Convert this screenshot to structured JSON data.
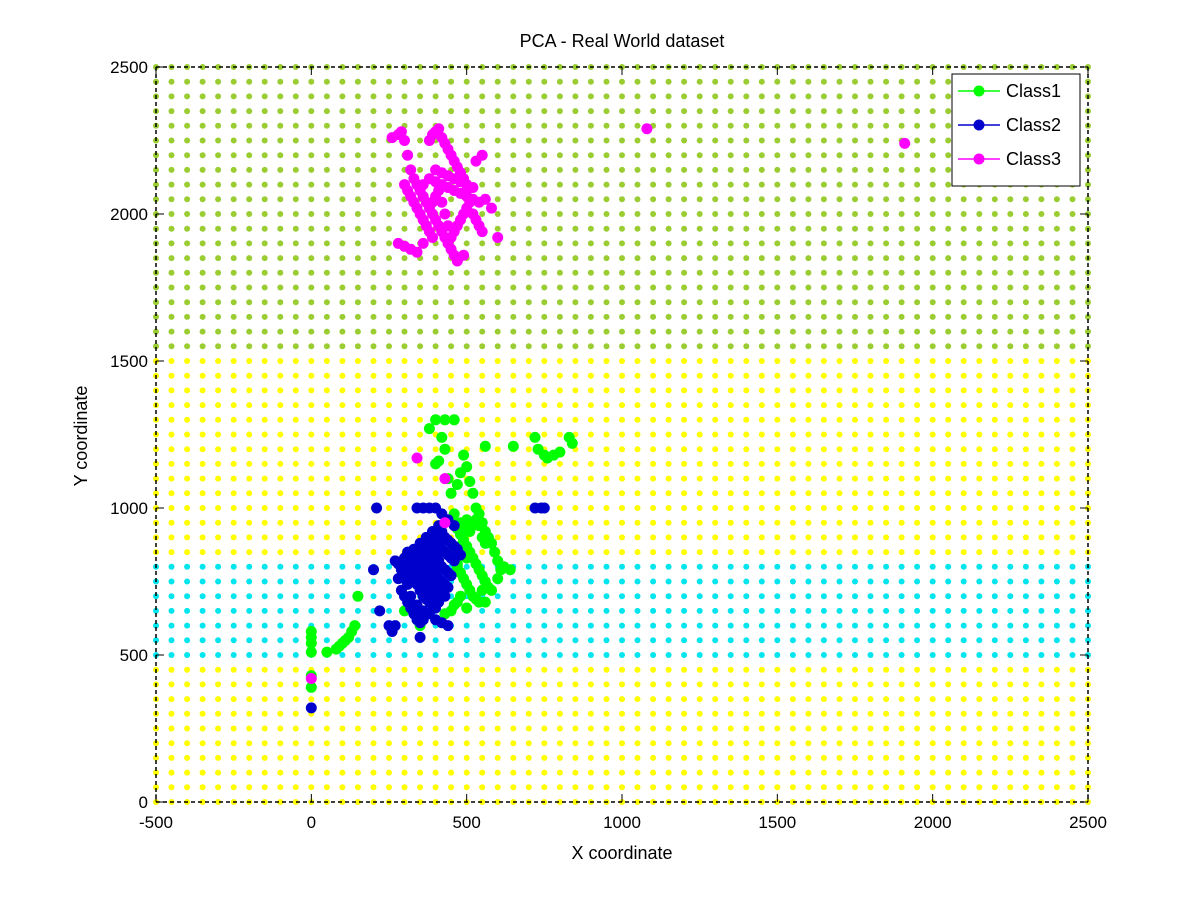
{
  "chart_data": {
    "type": "scatter",
    "title": "PCA - Real World dataset",
    "xlabel": "X coordinate",
    "ylabel": "Y coordinate",
    "xlim": [
      -500,
      2500
    ],
    "ylim": [
      0,
      2500
    ],
    "xticks": [
      -500,
      0,
      500,
      1000,
      1500,
      2000,
      2500
    ],
    "yticks": [
      0,
      500,
      1000,
      1500,
      2000,
      2500
    ],
    "grid": false,
    "legend_position": "top-right",
    "background_decision_regions": {
      "grid_spacing": 50,
      "regions": [
        {
          "class": "Class1",
          "y_from": 1550,
          "y_to": 2500,
          "color": "#9acd32"
        },
        {
          "class": "Class2",
          "y_from": 500,
          "y_to": 800,
          "color": "#00e5ee"
        },
        {
          "class": "Class3",
          "y_from": 0,
          "y_to": 450,
          "color": "#ffff00"
        },
        {
          "class": "Class3",
          "y_from": 850,
          "y_to": 1500,
          "color": "#ffff00"
        }
      ]
    },
    "series": [
      {
        "name": "Class1",
        "color": "#00ff00",
        "points": [
          [
            0,
            390
          ],
          [
            0,
            430
          ],
          [
            0,
            510
          ],
          [
            0,
            540
          ],
          [
            0,
            560
          ],
          [
            0,
            580
          ],
          [
            50,
            510
          ],
          [
            80,
            520
          ],
          [
            90,
            530
          ],
          [
            100,
            540
          ],
          [
            110,
            550
          ],
          [
            120,
            560
          ],
          [
            130,
            580
          ],
          [
            140,
            600
          ],
          [
            150,
            700
          ],
          [
            300,
            650
          ],
          [
            350,
            600
          ],
          [
            360,
            700
          ],
          [
            380,
            820
          ],
          [
            400,
            1150
          ],
          [
            410,
            1160
          ],
          [
            430,
            1200
          ],
          [
            440,
            1100
          ],
          [
            450,
            1050
          ],
          [
            460,
            980
          ],
          [
            470,
            1080
          ],
          [
            480,
            1120
          ],
          [
            490,
            1180
          ],
          [
            500,
            1140
          ],
          [
            510,
            1090
          ],
          [
            520,
            1050
          ],
          [
            530,
            1000
          ],
          [
            540,
            980
          ],
          [
            550,
            950
          ],
          [
            560,
            920
          ],
          [
            570,
            900
          ],
          [
            580,
            880
          ],
          [
            590,
            850
          ],
          [
            600,
            820
          ],
          [
            620,
            800
          ],
          [
            640,
            790
          ],
          [
            460,
            950
          ],
          [
            470,
            930
          ],
          [
            480,
            910
          ],
          [
            490,
            890
          ],
          [
            500,
            870
          ],
          [
            510,
            850
          ],
          [
            520,
            830
          ],
          [
            530,
            810
          ],
          [
            540,
            790
          ],
          [
            550,
            770
          ],
          [
            560,
            750
          ],
          [
            570,
            730
          ],
          [
            580,
            720
          ],
          [
            470,
            800
          ],
          [
            480,
            780
          ],
          [
            490,
            760
          ],
          [
            500,
            740
          ],
          [
            510,
            720
          ],
          [
            520,
            700
          ],
          [
            530,
            690
          ],
          [
            540,
            680
          ],
          [
            550,
            900
          ],
          [
            560,
            880
          ],
          [
            450,
            850
          ],
          [
            460,
            830
          ],
          [
            470,
            810
          ],
          [
            480,
            870
          ],
          [
            490,
            850
          ],
          [
            500,
            830
          ],
          [
            510,
            920
          ],
          [
            520,
            940
          ],
          [
            530,
            960
          ],
          [
            540,
            940
          ],
          [
            500,
            960
          ],
          [
            490,
            940
          ],
          [
            480,
            950
          ],
          [
            420,
            1240
          ],
          [
            400,
            1300
          ],
          [
            430,
            1300
          ],
          [
            460,
            1300
          ],
          [
            380,
            1270
          ],
          [
            560,
            1210
          ],
          [
            650,
            1210
          ],
          [
            720,
            1240
          ],
          [
            730,
            1200
          ],
          [
            750,
            1180
          ],
          [
            760,
            1170
          ],
          [
            780,
            1180
          ],
          [
            800,
            1190
          ],
          [
            830,
            1240
          ],
          [
            840,
            1220
          ],
          [
            480,
            700
          ],
          [
            470,
            680
          ],
          [
            500,
            660
          ],
          [
            550,
            720
          ],
          [
            560,
            680
          ],
          [
            600,
            760
          ],
          [
            610,
            790
          ],
          [
            450,
            650
          ],
          [
            460,
            670
          ],
          [
            430,
            640
          ]
        ]
      },
      {
        "name": "Class2",
        "color": "#0000cd",
        "points": [
          [
            0,
            320
          ],
          [
            200,
            790
          ],
          [
            210,
            1000
          ],
          [
            220,
            650
          ],
          [
            250,
            600
          ],
          [
            260,
            580
          ],
          [
            270,
            820
          ],
          [
            280,
            760
          ],
          [
            290,
            720
          ],
          [
            300,
            700
          ],
          [
            310,
            680
          ],
          [
            320,
            660
          ],
          [
            330,
            640
          ],
          [
            340,
            620
          ],
          [
            350,
            610
          ],
          [
            360,
            620
          ],
          [
            300,
            830
          ],
          [
            310,
            800
          ],
          [
            320,
            780
          ],
          [
            330,
            760
          ],
          [
            340,
            740
          ],
          [
            350,
            720
          ],
          [
            360,
            700
          ],
          [
            370,
            690
          ],
          [
            380,
            680
          ],
          [
            390,
            670
          ],
          [
            400,
            660
          ],
          [
            310,
            850
          ],
          [
            320,
            820
          ],
          [
            330,
            800
          ],
          [
            340,
            780
          ],
          [
            350,
            760
          ],
          [
            360,
            740
          ],
          [
            370,
            720
          ],
          [
            380,
            710
          ],
          [
            390,
            700
          ],
          [
            400,
            690
          ],
          [
            410,
            680
          ],
          [
            330,
            860
          ],
          [
            340,
            840
          ],
          [
            350,
            820
          ],
          [
            360,
            800
          ],
          [
            370,
            780
          ],
          [
            380,
            760
          ],
          [
            390,
            740
          ],
          [
            400,
            730
          ],
          [
            410,
            720
          ],
          [
            420,
            710
          ],
          [
            430,
            700
          ],
          [
            350,
            880
          ],
          [
            360,
            860
          ],
          [
            370,
            840
          ],
          [
            380,
            820
          ],
          [
            390,
            800
          ],
          [
            400,
            780
          ],
          [
            410,
            760
          ],
          [
            420,
            750
          ],
          [
            430,
            740
          ],
          [
            440,
            730
          ],
          [
            370,
            900
          ],
          [
            380,
            880
          ],
          [
            390,
            860
          ],
          [
            400,
            840
          ],
          [
            410,
            820
          ],
          [
            420,
            800
          ],
          [
            430,
            790
          ],
          [
            440,
            780
          ],
          [
            450,
            770
          ],
          [
            390,
            920
          ],
          [
            400,
            900
          ],
          [
            410,
            880
          ],
          [
            420,
            860
          ],
          [
            430,
            850
          ],
          [
            440,
            840
          ],
          [
            450,
            830
          ],
          [
            460,
            820
          ],
          [
            410,
            940
          ],
          [
            420,
            920
          ],
          [
            430,
            900
          ],
          [
            440,
            890
          ],
          [
            450,
            880
          ],
          [
            460,
            870
          ],
          [
            470,
            860
          ],
          [
            480,
            840
          ],
          [
            340,
            1000
          ],
          [
            360,
            1000
          ],
          [
            380,
            1000
          ],
          [
            400,
            1000
          ],
          [
            420,
            980
          ],
          [
            440,
            960
          ],
          [
            460,
            940
          ],
          [
            720,
            1000
          ],
          [
            740,
            1000
          ],
          [
            750,
            1000
          ],
          [
            400,
            620
          ],
          [
            420,
            610
          ],
          [
            440,
            600
          ],
          [
            380,
            640
          ],
          [
            360,
            650
          ],
          [
            340,
            670
          ],
          [
            320,
            700
          ],
          [
            310,
            740
          ],
          [
            300,
            760
          ],
          [
            290,
            790
          ],
          [
            280,
            810
          ],
          [
            350,
            560
          ],
          [
            270,
            600
          ]
        ]
      },
      {
        "name": "Class3",
        "color": "#ff00ff",
        "points": [
          [
            0,
            420
          ],
          [
            340,
            1170
          ],
          [
            430,
            1100
          ],
          [
            430,
            950
          ],
          [
            260,
            2260
          ],
          [
            280,
            2270
          ],
          [
            290,
            2280
          ],
          [
            300,
            2250
          ],
          [
            310,
            2200
          ],
          [
            320,
            2150
          ],
          [
            330,
            2120
          ],
          [
            340,
            2100
          ],
          [
            350,
            2080
          ],
          [
            360,
            2060
          ],
          [
            370,
            2040
          ],
          [
            380,
            2020
          ],
          [
            390,
            2000
          ],
          [
            400,
            1980
          ],
          [
            410,
            1960
          ],
          [
            420,
            1940
          ],
          [
            430,
            1920
          ],
          [
            440,
            1900
          ],
          [
            450,
            1880
          ],
          [
            460,
            1860
          ],
          [
            300,
            2100
          ],
          [
            310,
            2080
          ],
          [
            320,
            2060
          ],
          [
            330,
            2040
          ],
          [
            340,
            2020
          ],
          [
            350,
            2000
          ],
          [
            360,
            1980
          ],
          [
            370,
            1960
          ],
          [
            380,
            1940
          ],
          [
            390,
            1920
          ],
          [
            280,
            1900
          ],
          [
            300,
            1890
          ],
          [
            320,
            1880
          ],
          [
            340,
            1870
          ],
          [
            360,
            1900
          ],
          [
            380,
            2120
          ],
          [
            400,
            2110
          ],
          [
            420,
            2100
          ],
          [
            440,
            2090
          ],
          [
            460,
            2080
          ],
          [
            480,
            2070
          ],
          [
            500,
            2060
          ],
          [
            520,
            2050
          ],
          [
            540,
            2040
          ],
          [
            400,
            2150
          ],
          [
            420,
            2140
          ],
          [
            440,
            2130
          ],
          [
            460,
            2120
          ],
          [
            480,
            2110
          ],
          [
            500,
            2100
          ],
          [
            520,
            2090
          ],
          [
            380,
            2250
          ],
          [
            390,
            2270
          ],
          [
            400,
            2280
          ],
          [
            410,
            2290
          ],
          [
            420,
            2260
          ],
          [
            430,
            2240
          ],
          [
            440,
            2220
          ],
          [
            450,
            2200
          ],
          [
            460,
            2180
          ],
          [
            470,
            2160
          ],
          [
            480,
            2140
          ],
          [
            490,
            2120
          ],
          [
            500,
            2080
          ],
          [
            510,
            2040
          ],
          [
            520,
            2000
          ],
          [
            530,
            1980
          ],
          [
            540,
            1960
          ],
          [
            550,
            1940
          ],
          [
            500,
            2020
          ],
          [
            490,
            2000
          ],
          [
            480,
            1980
          ],
          [
            470,
            1960
          ],
          [
            460,
            1940
          ],
          [
            450,
            1920
          ],
          [
            440,
            1960
          ],
          [
            430,
            2000
          ],
          [
            420,
            2040
          ],
          [
            410,
            2080
          ],
          [
            400,
            2060
          ],
          [
            390,
            2040
          ],
          [
            360,
            2100
          ],
          [
            560,
            2050
          ],
          [
            580,
            2020
          ],
          [
            600,
            1920
          ],
          [
            490,
            1860
          ],
          [
            470,
            1840
          ],
          [
            530,
            2180
          ],
          [
            550,
            2200
          ],
          [
            1080,
            2290
          ],
          [
            1910,
            2240
          ]
        ]
      }
    ]
  }
}
